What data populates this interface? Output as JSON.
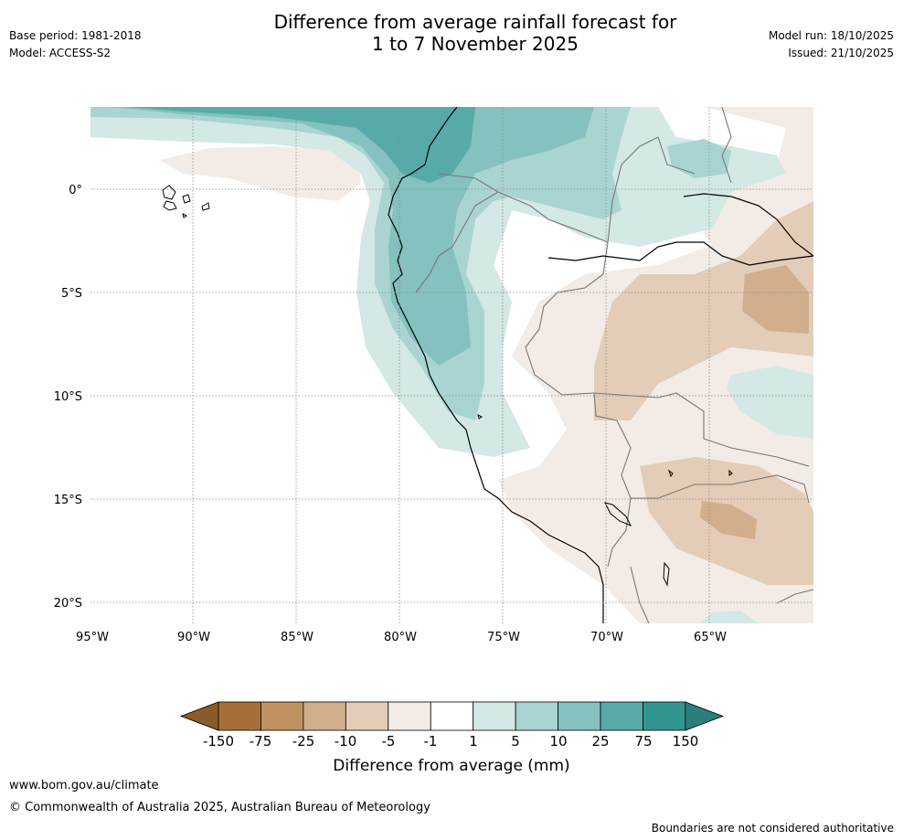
{
  "header": {
    "title_line1": "Difference from average rainfall forecast for",
    "title_line2": "1 to 7 November 2025",
    "base_period": "Base period: 1981-2018",
    "model": "Model: ACCESS-S2",
    "model_run": "Model run: 18/10/2025",
    "issued": "Issued: 21/10/2025"
  },
  "map": {
    "lat_labels": [
      "0°",
      "5°S",
      "10°S",
      "15°S",
      "20°S"
    ],
    "lon_labels": [
      "95°W",
      "90°W",
      "85°W",
      "80°W",
      "75°W",
      "70°W",
      "65°W"
    ]
  },
  "colorbar": {
    "ticks": [
      "-150",
      "-75",
      "-25",
      "-10",
      "-5",
      "-1",
      "1",
      "5",
      "10",
      "25",
      "75",
      "150"
    ],
    "colors": [
      "#a66f3a",
      "#c0925f",
      "#d1ae8c",
      "#e3cdb8",
      "#f3ece6",
      "#ffffff",
      "#d4e8e6",
      "#aad4d2",
      "#84c1bf",
      "#58aaa8",
      "#33958f"
    ],
    "under_color": "#8b5a2b",
    "over_color": "#2b7f7b",
    "label": "Difference from average (mm)"
  },
  "footer": {
    "url": "www.bom.gov.au/climate",
    "copyright": "© Commonwealth of Australia 2025, Australian Bureau of Meteorology",
    "disclaimer": "Boundaries are not considered authoritative"
  }
}
